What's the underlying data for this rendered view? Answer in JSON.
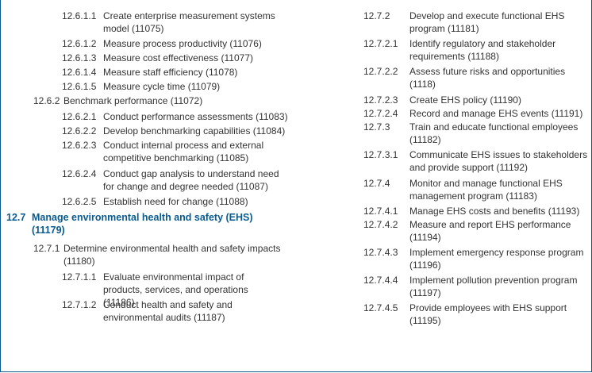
{
  "left_items": [
    {
      "num": "12.6.1.1",
      "text": "Create enterprise measurement systems model (11075)"
    },
    {
      "num": "12.6.1.2",
      "text": "Measure process productivity (11076)"
    },
    {
      "num": "12.6.1.3",
      "text": "Measure cost effectiveness (11077)"
    },
    {
      "num": "12.6.1.4",
      "text": "Measure staff efficiency (11078)"
    },
    {
      "num": "12.6.1.5",
      "text": "Measure cycle time (11079)"
    },
    {
      "num": "12.6.2",
      "text": "Benchmark performance (11072)"
    },
    {
      "num": "12.6.2.1",
      "text": "Conduct performance assessments (11083)"
    },
    {
      "num": "12.6.2.2",
      "text": "Develop benchmarking capabilities (11084)"
    },
    {
      "num": "12.6.2.3",
      "text": "Conduct internal process and external competitive benchmarking (11085)"
    },
    {
      "num": "12.6.2.4",
      "text": "Conduct gap analysis to understand need for change and degree needed (11087)"
    },
    {
      "num": "12.6.2.5",
      "text": "Establish need for change (11088)"
    },
    {
      "num": "12.7",
      "text": "Manage environmental health and safety (EHS) (11179)"
    },
    {
      "num": "12.7.1",
      "text": "Determine environmental health and safety impacts (11180)"
    },
    {
      "num": "12.7.1.1",
      "text": "Evaluate environmental impact of products, services, and operations (11186)"
    },
    {
      "num": "12.7.1.2",
      "text": "Conduct health and safety and environmental audits (11187)"
    }
  ],
  "right_items": [
    {
      "num": "12.7.2",
      "text": "Develop and execute functional EHS program (11181)"
    },
    {
      "num": "12.7.2.1",
      "text": "Identify regulatory and stakeholder requirements (11188)"
    },
    {
      "num": "12.7.2.2",
      "text": "Assess future risks and opportunities (1118)"
    },
    {
      "num": "12.7.2.3",
      "text": "Create EHS policy (11190)"
    },
    {
      "num": "12.7.2.4",
      "text": "Record and manage EHS events (11191)"
    },
    {
      "num": "12.7.3",
      "text": "Train and educate functional employees (11182)"
    },
    {
      "num": "12.7.3.1",
      "text": "Communicate EHS issues to stakeholders and provide support (11192)"
    },
    {
      "num": "12.7.4",
      "text": "Monitor and manage functional EHS management program (11183)"
    },
    {
      "num": "12.7.4.1",
      "text": "Manage EHS costs and benefits (11193)"
    },
    {
      "num": "12.7.4.2",
      "text": "Measure and report EHS performance (11194)"
    },
    {
      "num": "12.7.4.3",
      "text": "Implement emergency response program (11196)"
    },
    {
      "num": "12.7.4.4",
      "text": "Implement pollution prevention program (11197)"
    },
    {
      "num": "12.7.4.5",
      "text": "Provide employees with EHS support (11195)"
    }
  ],
  "colors": {
    "section_heading": "#0b5a8e",
    "body_text": "#333333",
    "border": "#0a5a8c"
  }
}
